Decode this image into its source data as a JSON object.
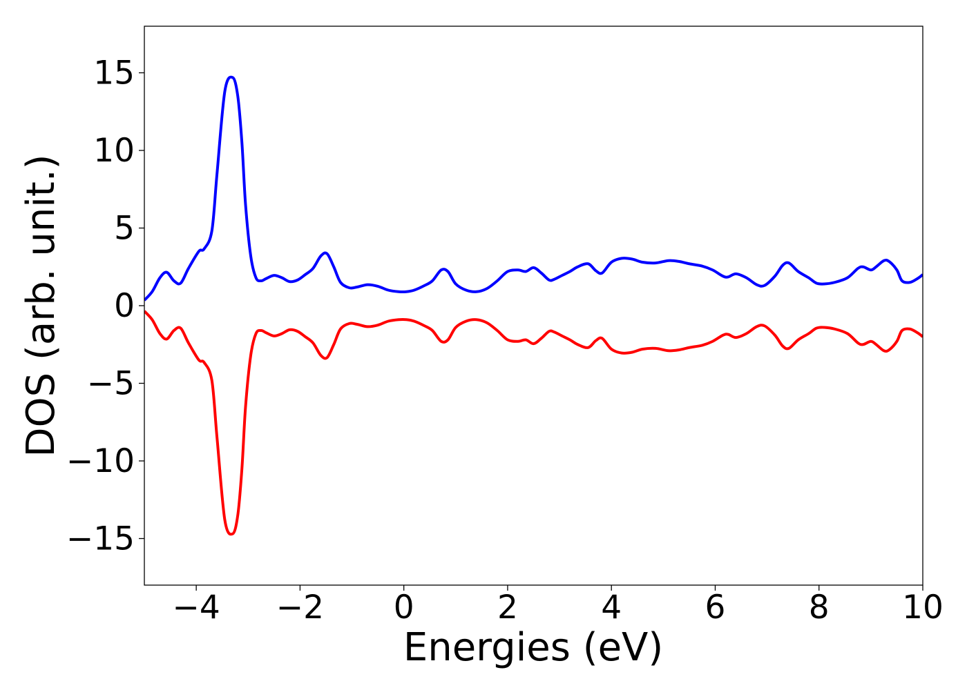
{
  "chart_data": {
    "type": "line",
    "title": "",
    "xlabel": "Energies (eV)",
    "ylabel": "DOS (arb. unit.)",
    "xlim": [
      -5,
      10
    ],
    "ylim": [
      -18,
      18
    ],
    "grid": false,
    "legend": "none",
    "x_ticks": [
      -4,
      -2,
      0,
      2,
      4,
      6,
      8,
      10
    ],
    "y_ticks": [
      -15,
      -10,
      -5,
      0,
      5,
      10,
      15
    ],
    "x_tick_labels": [
      "−4",
      "−2",
      "0",
      "2",
      "4",
      "6",
      "8",
      "10"
    ],
    "y_tick_labels": [
      "−15",
      "−10",
      "−5",
      "0",
      "5",
      "10",
      "15"
    ],
    "series": [
      {
        "color": "#0000ff",
        "x": [
          -5.0,
          -4.85,
          -4.7,
          -4.57,
          -4.43,
          -4.3,
          -4.15,
          -3.95,
          -3.85,
          -3.7,
          -3.6,
          -3.45,
          -3.3,
          -3.2,
          -3.12,
          -3.05,
          -2.95,
          -2.85,
          -2.75,
          -2.65,
          -2.5,
          -2.35,
          -2.2,
          -2.05,
          -1.9,
          -1.75,
          -1.6,
          -1.48,
          -1.35,
          -1.22,
          -1.05,
          -0.9,
          -0.7,
          -0.5,
          -0.3,
          -0.1,
          0.05,
          0.2,
          0.4,
          0.55,
          0.72,
          0.85,
          1.0,
          1.2,
          1.4,
          1.6,
          1.8,
          2.0,
          2.2,
          2.35,
          2.5,
          2.65,
          2.8,
          2.9,
          3.05,
          3.2,
          3.35,
          3.55,
          3.7,
          3.82,
          4.0,
          4.2,
          4.4,
          4.6,
          4.85,
          5.1,
          5.3,
          5.5,
          5.75,
          5.95,
          6.15,
          6.25,
          6.4,
          6.6,
          6.8,
          6.95,
          7.15,
          7.3,
          7.42,
          7.6,
          7.8,
          7.95,
          8.1,
          8.3,
          8.55,
          8.75,
          8.85,
          9.0,
          9.1,
          9.25,
          9.35,
          9.5,
          9.6,
          9.75,
          9.9,
          10.0
        ],
        "values": [
          0.35,
          0.9,
          1.8,
          2.15,
          1.6,
          1.45,
          2.4,
          3.5,
          3.65,
          4.8,
          8.5,
          13.8,
          14.7,
          13.5,
          10.5,
          6.5,
          3.2,
          1.8,
          1.6,
          1.75,
          1.95,
          1.8,
          1.55,
          1.65,
          2.0,
          2.4,
          3.2,
          3.35,
          2.5,
          1.5,
          1.15,
          1.2,
          1.35,
          1.25,
          1.0,
          0.9,
          0.9,
          1.0,
          1.3,
          1.6,
          2.3,
          2.2,
          1.4,
          1.0,
          0.9,
          1.1,
          1.6,
          2.2,
          2.3,
          2.2,
          2.45,
          2.1,
          1.65,
          1.7,
          1.95,
          2.2,
          2.5,
          2.7,
          2.25,
          2.1,
          2.8,
          3.05,
          3.0,
          2.8,
          2.75,
          2.9,
          2.85,
          2.7,
          2.55,
          2.3,
          1.9,
          1.85,
          2.05,
          1.8,
          1.35,
          1.3,
          1.9,
          2.6,
          2.75,
          2.2,
          1.8,
          1.45,
          1.4,
          1.5,
          1.8,
          2.4,
          2.5,
          2.3,
          2.5,
          2.9,
          2.85,
          2.3,
          1.6,
          1.5,
          1.75,
          2.0
        ]
      },
      {
        "color": "#ff0000",
        "x": [
          -5.0,
          -4.85,
          -4.7,
          -4.57,
          -4.43,
          -4.3,
          -4.15,
          -3.95,
          -3.85,
          -3.7,
          -3.6,
          -3.45,
          -3.3,
          -3.2,
          -3.12,
          -3.05,
          -2.95,
          -2.85,
          -2.75,
          -2.65,
          -2.5,
          -2.35,
          -2.2,
          -2.05,
          -1.9,
          -1.75,
          -1.6,
          -1.48,
          -1.35,
          -1.22,
          -1.05,
          -0.9,
          -0.7,
          -0.5,
          -0.3,
          -0.1,
          0.05,
          0.2,
          0.4,
          0.55,
          0.72,
          0.85,
          1.0,
          1.2,
          1.4,
          1.6,
          1.8,
          2.0,
          2.2,
          2.35,
          2.5,
          2.65,
          2.8,
          2.9,
          3.05,
          3.2,
          3.35,
          3.55,
          3.7,
          3.82,
          4.0,
          4.2,
          4.4,
          4.6,
          4.85,
          5.1,
          5.3,
          5.5,
          5.75,
          5.95,
          6.15,
          6.25,
          6.4,
          6.6,
          6.8,
          6.95,
          7.15,
          7.3,
          7.42,
          7.6,
          7.8,
          7.95,
          8.1,
          8.3,
          8.55,
          8.75,
          8.85,
          9.0,
          9.1,
          9.25,
          9.35,
          9.5,
          9.6,
          9.75,
          9.9,
          10.0
        ],
        "values": [
          -0.35,
          -0.9,
          -1.8,
          -2.15,
          -1.6,
          -1.45,
          -2.4,
          -3.5,
          -3.65,
          -4.8,
          -8.5,
          -13.8,
          -14.7,
          -13.5,
          -10.5,
          -6.5,
          -3.2,
          -1.8,
          -1.6,
          -1.75,
          -1.95,
          -1.8,
          -1.55,
          -1.65,
          -2.0,
          -2.4,
          -3.2,
          -3.35,
          -2.5,
          -1.5,
          -1.15,
          -1.2,
          -1.35,
          -1.25,
          -1.0,
          -0.9,
          -0.9,
          -1.0,
          -1.3,
          -1.6,
          -2.3,
          -2.2,
          -1.4,
          -1.0,
          -0.9,
          -1.1,
          -1.6,
          -2.2,
          -2.3,
          -2.2,
          -2.45,
          -2.1,
          -1.65,
          -1.7,
          -1.95,
          -2.2,
          -2.5,
          -2.7,
          -2.25,
          -2.1,
          -2.8,
          -3.05,
          -3.0,
          -2.8,
          -2.75,
          -2.9,
          -2.85,
          -2.7,
          -2.55,
          -2.3,
          -1.9,
          -1.85,
          -2.05,
          -1.8,
          -1.35,
          -1.3,
          -1.9,
          -2.6,
          -2.75,
          -2.2,
          -1.8,
          -1.45,
          -1.4,
          -1.5,
          -1.8,
          -2.4,
          -2.5,
          -2.3,
          -2.5,
          -2.9,
          -2.85,
          -2.3,
          -1.6,
          -1.5,
          -1.75,
          -2.0
        ]
      }
    ]
  }
}
